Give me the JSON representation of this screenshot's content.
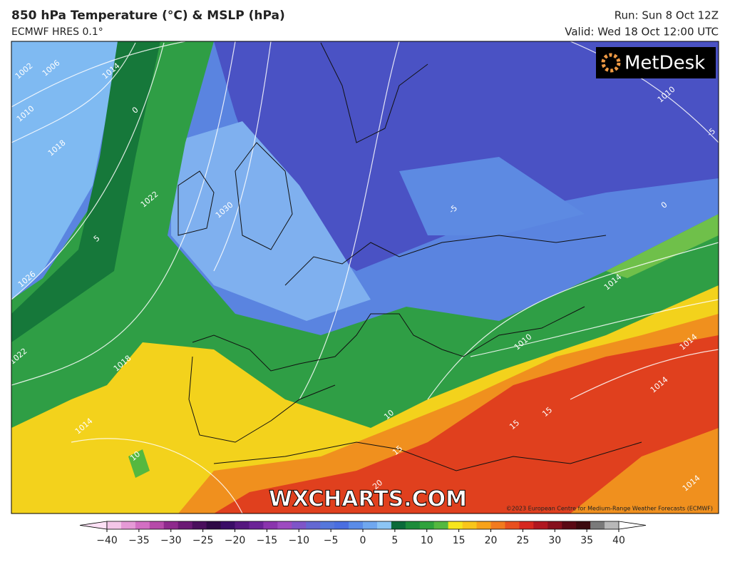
{
  "header": {
    "title": "850 hPa Temperature (°C) & MSLP (hPa)",
    "subtitle": "ECMWF HRES 0.1°",
    "run": "Run: Sun 8 Oct 12Z",
    "valid": "Valid: Wed 18 Oct 12:00 UTC"
  },
  "map": {
    "logo": "MetDesk",
    "watermark": "WXCHARTS.COM",
    "copyright": "©2023 European Centre for Medium-Range Weather Forecasts (ECMWF)",
    "labels": [
      "1002",
      "1006",
      "1014",
      "1010",
      "1018",
      "0",
      "1022",
      "1030",
      "-5",
      "1010",
      "-5",
      "0",
      "1014",
      "1010",
      "1014",
      "1018",
      "1022",
      "1014",
      "10",
      "10",
      "15",
      "15",
      "20",
      "15",
      "1014",
      "1014",
      "1026",
      "5"
    ]
  },
  "colorbar": {
    "lim": [
      -40,
      40
    ],
    "ticks": [
      {
        "value": -40,
        "label": "−40"
      },
      {
        "value": -35,
        "label": "−35"
      },
      {
        "value": -30,
        "label": "−30"
      },
      {
        "value": -25,
        "label": "−25"
      },
      {
        "value": -20,
        "label": "−20"
      },
      {
        "value": -15,
        "label": "−15"
      },
      {
        "value": -10,
        "label": "−10"
      },
      {
        "value": -5,
        "label": "−5"
      },
      0,
      5,
      10,
      15,
      20,
      25,
      30,
      35,
      40
    ],
    "colors": [
      "#f3c6e8",
      "#e59ad6",
      "#d36fc3",
      "#b64aa9",
      "#8e2a8c",
      "#6b1a74",
      "#4a0f5c",
      "#2e0a45",
      "#3a0d66",
      "#55177e",
      "#6b2396",
      "#8a34ad",
      "#9d4bc0",
      "#7e55c8",
      "#6468d2",
      "#5577db",
      "#4a6ee0",
      "#5a8ce8",
      "#6fa7ef",
      "#8cc5f5",
      "#0b6a3a",
      "#1c8b3a",
      "#2fa23c",
      "#55b83f",
      "#f6e61c",
      "#f9c61a",
      "#f7a219",
      "#f27a1e",
      "#e8501f",
      "#d6281f",
      "#b01720",
      "#86101c",
      "#5a0a14",
      "#3b0a0e",
      "#7a7a7a",
      "#b8b8b8"
    ],
    "under": "#fce0f5",
    "over": "#ffffff"
  }
}
